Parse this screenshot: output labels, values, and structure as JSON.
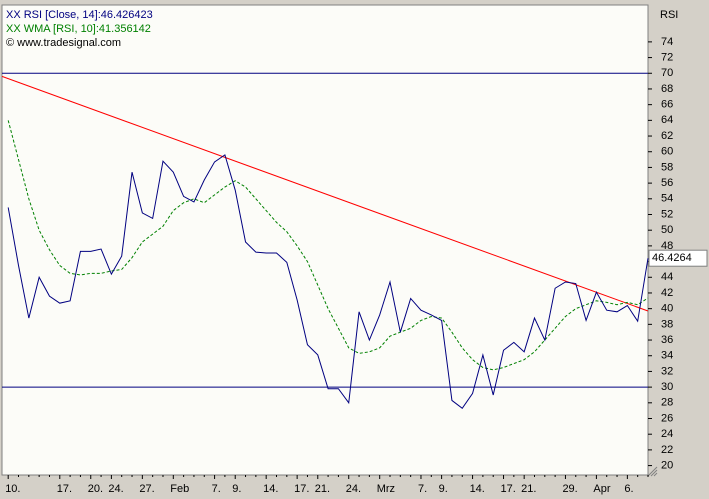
{
  "chart_data": {
    "type": "line",
    "axis_title": "RSI",
    "attribution": "© www.tradesignal.com",
    "last_value_label": "46.4264",
    "categories": [
      "10.",
      null,
      null,
      null,
      null,
      "17.",
      null,
      null,
      "20.",
      null,
      "24.",
      null,
      null,
      "27.",
      null,
      null,
      "Feb",
      null,
      null,
      null,
      "7.",
      null,
      "9.",
      null,
      null,
      "14.",
      null,
      null,
      "17.",
      null,
      "21.",
      null,
      null,
      "24.",
      null,
      null,
      "Mrz",
      null,
      null,
      null,
      "7.",
      null,
      "9.",
      null,
      null,
      "14.",
      null,
      null,
      "17.",
      null,
      "21.",
      null,
      null,
      null,
      "29.",
      null,
      null,
      "Apr",
      null,
      null,
      "6.",
      null,
      null
    ],
    "series": [
      {
        "name": "XX RSI [Close, 14]:46.426423",
        "color": "#000080",
        "dashed": false,
        "values": [
          52.9,
          45.5,
          38.8,
          44,
          41.6,
          40.7,
          41,
          47.3,
          47.3,
          47.6,
          44.4,
          46.7,
          57.4,
          52.2,
          51.5,
          58.8,
          57.4,
          54.3,
          53.6,
          56.4,
          58.7,
          59.6,
          55.1,
          48.5,
          47.2,
          47.1,
          47.1,
          45.9,
          41.1,
          35.4,
          34.1,
          29.8,
          29.8,
          28,
          39.6,
          36,
          39.2,
          43.4,
          37,
          41.3,
          39.8,
          39.2,
          38.5,
          28.3,
          27.3,
          29.2,
          34.1,
          29,
          34.7,
          35.7,
          34.5,
          38.8,
          36,
          42.6,
          43.4,
          43.2,
          38.5,
          42.1,
          39.8,
          39.6,
          40.4,
          38.4,
          46.43
        ]
      },
      {
        "name": "XX WMA [RSI, 10]:41.356142",
        "color": "#008000",
        "dashed": true,
        "values": [
          64,
          59,
          54,
          50,
          47.5,
          45.5,
          44.5,
          44.3,
          44.5,
          44.5,
          44.8,
          45,
          46.5,
          48.5,
          49.5,
          50.5,
          52.5,
          53.5,
          54,
          53.5,
          54.5,
          55.5,
          56.3,
          55.5,
          54,
          52.5,
          51,
          49.8,
          48,
          46,
          43,
          40,
          37.5,
          35,
          34.3,
          34.5,
          35,
          36.5,
          37,
          37.5,
          38.5,
          39,
          38.8,
          37,
          35,
          33.5,
          32.5,
          32.2,
          32.5,
          33,
          33.5,
          34.5,
          36,
          37.5,
          39,
          40,
          40.5,
          41,
          40.8,
          40.5,
          40.8,
          40.5,
          41.36
        ]
      }
    ],
    "trendline": {
      "color": "#ff0000",
      "x": [
        -0.6,
        62
      ],
      "values": [
        69.6,
        39.7
      ]
    },
    "hlines": {
      "color": "#000080",
      "values": [
        70,
        30
      ]
    },
    "xlim": [
      -0.6,
      62
    ],
    "ylim": [
      18.8,
      78.7
    ],
    "yticks": [
      20,
      22,
      24,
      26,
      28,
      30,
      32,
      34,
      36,
      38,
      40,
      42,
      44,
      46,
      48,
      50,
      52,
      54,
      56,
      58,
      60,
      62,
      64,
      66,
      68,
      70,
      72,
      74
    ]
  }
}
